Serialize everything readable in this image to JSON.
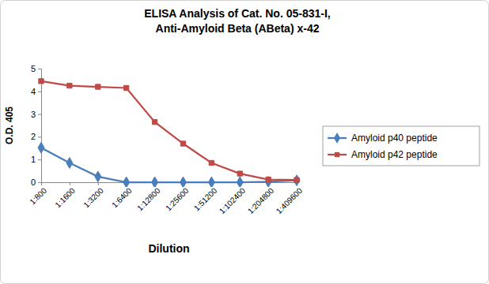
{
  "chart_data": {
    "type": "line",
    "title": [
      "ELISA Analysis of Cat. No. 05-831-I,",
      "Anti-Amyloid Beta (ABeta) x-42"
    ],
    "x_label": "Dilution",
    "y_label": "O.D. 405",
    "categories": [
      "1:800",
      "1:1600",
      "1:3200",
      "1:6400",
      "1:12800",
      "1:25600",
      "1:51200",
      "1:102400",
      "1:204800",
      "1:409600"
    ],
    "series": [
      {
        "name": "Amyloid p40 peptide",
        "color": "#4a7ebb",
        "marker": "diamond",
        "values": [
          1.52,
          0.85,
          0.25,
          0.0,
          0.0,
          0.0,
          0.0,
          0.0,
          0.02,
          0.08
        ]
      },
      {
        "name": "Amyloid p42 peptide",
        "color": "#be4b48",
        "marker": "square",
        "values": [
          4.45,
          4.25,
          4.2,
          4.15,
          2.65,
          1.7,
          0.85,
          0.38,
          0.12,
          0.1
        ]
      }
    ],
    "ylim": [
      0,
      5
    ],
    "yticks": [
      0,
      1,
      2,
      3,
      4,
      5
    ],
    "grid": false,
    "legend": "right"
  }
}
